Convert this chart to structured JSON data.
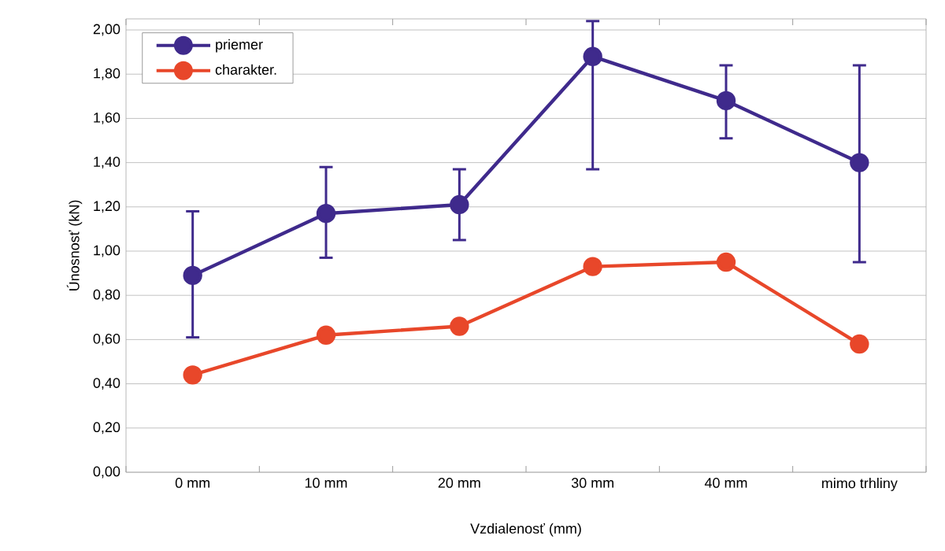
{
  "chart_data": {
    "type": "line",
    "xlabel": "Vzdialenosť (mm)",
    "ylabel": "Únosnosť (kN)",
    "categories": [
      "0 mm",
      "10 mm",
      "20 mm",
      "30 mm",
      "40 mm",
      "mimo trhliny"
    ],
    "series": [
      {
        "name": "priemer",
        "color": "#3f2a8c",
        "values": [
          0.89,
          1.17,
          1.21,
          1.88,
          1.68,
          1.4
        ],
        "errors": [
          [
            0.61,
            1.18
          ],
          [
            0.97,
            1.38
          ],
          [
            1.05,
            1.37
          ],
          [
            1.37,
            2.04
          ],
          [
            1.51,
            1.84
          ],
          [
            0.95,
            1.84
          ]
        ]
      },
      {
        "name": "charakter.",
        "color": "#e8472a",
        "values": [
          0.44,
          0.62,
          0.66,
          0.93,
          0.95,
          0.58
        ]
      }
    ],
    "ylim": [
      0,
      2.05
    ],
    "yticks": [
      {
        "value": 0,
        "label": "0,00"
      },
      {
        "value": 0.2,
        "label": "0,20"
      },
      {
        "value": 0.4,
        "label": "0,40"
      },
      {
        "value": 0.6,
        "label": "0,60"
      },
      {
        "value": 0.8,
        "label": "0,80"
      },
      {
        "value": 1.0,
        "label": "1,00"
      },
      {
        "value": 1.2,
        "label": "1,20"
      },
      {
        "value": 1.4,
        "label": "1,40"
      },
      {
        "value": 1.6,
        "label": "1,60"
      },
      {
        "value": 1.8,
        "label": "1,80"
      },
      {
        "value": 2.0,
        "label": "2,00"
      }
    ],
    "grid": "y",
    "legend": "top left",
    "marker": "circle",
    "line_style": "solid"
  }
}
